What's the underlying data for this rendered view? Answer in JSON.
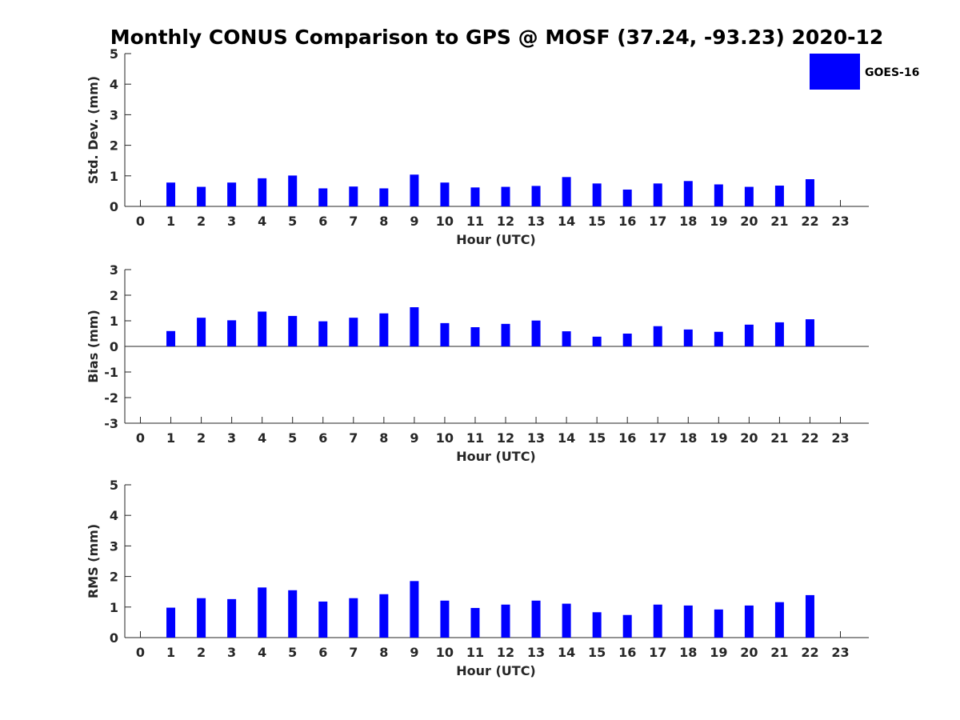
{
  "figure": {
    "title": "Monthly CONUS Comparison to GPS @ MOSF (37.24, -93.23) 2020-12"
  },
  "legend": {
    "label": "GOES-16",
    "placement": "top-right",
    "color": "#0000ff"
  },
  "chart_data": [
    {
      "type": "bar",
      "name": "std_dev",
      "xlabel": "Hour (UTC)",
      "ylabel": "Std. Dev. (mm)",
      "ylim": [
        0,
        5
      ],
      "yticks": [
        0,
        1,
        2,
        3,
        4,
        5
      ],
      "categories": [
        "0",
        "1",
        "2",
        "3",
        "4",
        "5",
        "6",
        "7",
        "8",
        "9",
        "10",
        "11",
        "12",
        "13",
        "14",
        "15",
        "16",
        "17",
        "18",
        "19",
        "20",
        "21",
        "22",
        "23"
      ],
      "series": [
        {
          "name": "GOES-16",
          "color": "#0000ff",
          "values": [
            null,
            0.78,
            0.64,
            0.78,
            0.92,
            1.01,
            0.59,
            0.65,
            0.59,
            1.04,
            0.78,
            0.62,
            0.64,
            0.67,
            0.96,
            0.75,
            0.55,
            0.75,
            0.83,
            0.72,
            0.64,
            0.68,
            0.89,
            null
          ]
        }
      ]
    },
    {
      "type": "bar",
      "name": "bias",
      "xlabel": "Hour (UTC)",
      "ylabel": "Bias (mm)",
      "ylim": [
        -3,
        3
      ],
      "yticks": [
        -3,
        -2,
        -1,
        0,
        1,
        2,
        3
      ],
      "zero_line": true,
      "categories": [
        "0",
        "1",
        "2",
        "3",
        "4",
        "5",
        "6",
        "7",
        "8",
        "9",
        "10",
        "11",
        "12",
        "13",
        "14",
        "15",
        "16",
        "17",
        "18",
        "19",
        "20",
        "21",
        "22",
        "23"
      ],
      "series": [
        {
          "name": "GOES-16",
          "color": "#0000ff",
          "values": [
            null,
            0.6,
            1.12,
            1.02,
            1.36,
            1.19,
            0.98,
            1.12,
            1.29,
            1.53,
            0.91,
            0.75,
            0.88,
            1.01,
            0.59,
            0.38,
            0.5,
            0.79,
            0.66,
            0.57,
            0.85,
            0.94,
            1.06,
            null
          ]
        }
      ]
    },
    {
      "type": "bar",
      "name": "rms",
      "xlabel": "Hour (UTC)",
      "ylabel": "RMS (mm)",
      "ylim": [
        0,
        5
      ],
      "yticks": [
        0,
        1,
        2,
        3,
        4,
        5
      ],
      "categories": [
        "0",
        "1",
        "2",
        "3",
        "4",
        "5",
        "6",
        "7",
        "8",
        "9",
        "10",
        "11",
        "12",
        "13",
        "14",
        "15",
        "16",
        "17",
        "18",
        "19",
        "20",
        "21",
        "22",
        "23"
      ],
      "series": [
        {
          "name": "GOES-16",
          "color": "#0000ff",
          "values": [
            null,
            0.98,
            1.29,
            1.26,
            1.64,
            1.55,
            1.18,
            1.29,
            1.42,
            1.85,
            1.21,
            0.97,
            1.08,
            1.21,
            1.11,
            0.83,
            0.74,
            1.08,
            1.05,
            0.92,
            1.05,
            1.16,
            1.39,
            null
          ]
        }
      ]
    }
  ]
}
